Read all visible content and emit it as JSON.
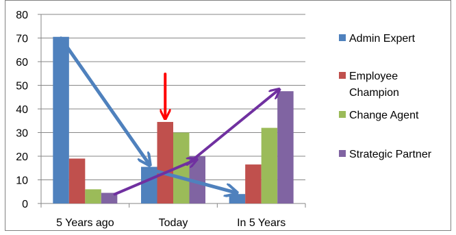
{
  "chart_data": {
    "type": "bar",
    "categories": [
      "5 Years ago",
      "Today",
      "In 5 Years"
    ],
    "series": [
      {
        "name": "Admin Expert",
        "color": "#4F81BD",
        "values": [
          70.5,
          15.5,
          4
        ]
      },
      {
        "name": "Employee Champion",
        "color": "#C0504D",
        "values": [
          19,
          34.5,
          16.5
        ]
      },
      {
        "name": "Change Agent",
        "color": "#9BBB59",
        "values": [
          6,
          30,
          32
        ]
      },
      {
        "name": "Strategic Partner",
        "color": "#8064A2",
        "values": [
          4.5,
          20,
          47.5
        ]
      }
    ],
    "ylim": [
      0,
      80
    ],
    "yticks": [
      0,
      10,
      20,
      30,
      40,
      50,
      60,
      70,
      80
    ],
    "grid": true,
    "legend_placement": "right",
    "annotations": {
      "red_arrow": {
        "color": "#FF0000",
        "target": "Employee Champion, Today"
      },
      "blue_trend_arrow": {
        "color": "#4F81BD",
        "series": "Admin Expert"
      },
      "purple_trend_arrow": {
        "color": "#7030A0",
        "series": "Strategic Partner"
      }
    }
  }
}
